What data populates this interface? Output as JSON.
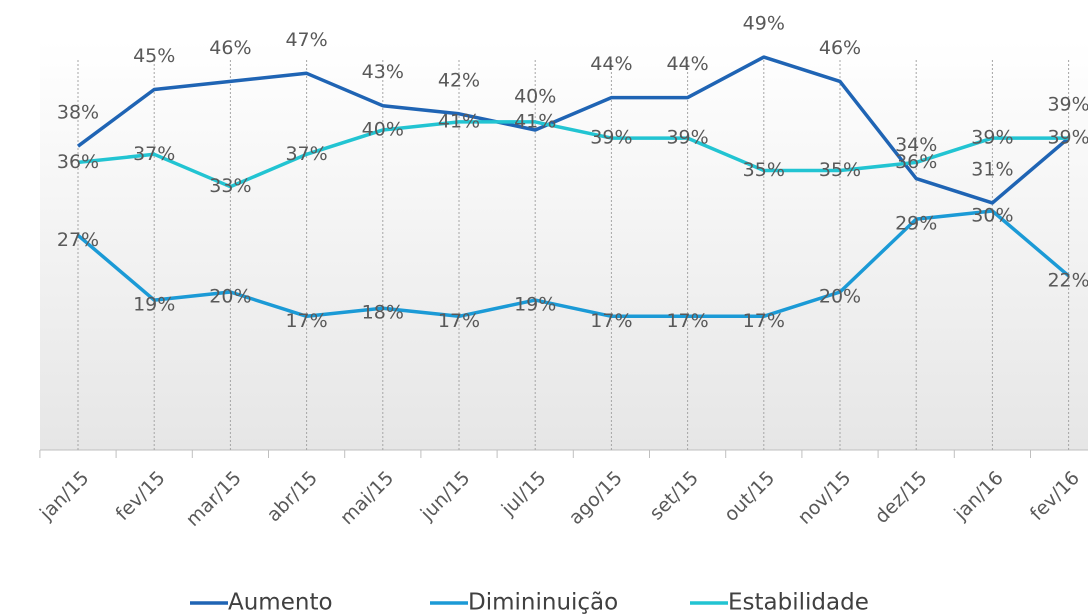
{
  "chart_data": {
    "type": "line",
    "categories": [
      "jan/15",
      "fev/15",
      "mar/15",
      "abr/15",
      "mai/15",
      "jun/15",
      "jul/15",
      "ago/15",
      "set/15",
      "out/15",
      "nov/15",
      "dez/15",
      "jan/16",
      "fev/16"
    ],
    "series": [
      {
        "name": "Aumento",
        "color": "#1f64b4",
        "values": [
          38,
          45,
          46,
          47,
          43,
          42,
          40,
          44,
          44,
          49,
          46,
          34,
          31,
          39
        ],
        "value_labels": [
          "38%",
          "45%",
          "46%",
          "47%",
          "43%",
          "42%",
          "40%",
          "44%",
          "44%",
          "49%",
          "46%",
          "34%",
          "31%",
          "39%"
        ]
      },
      {
        "name": "Dimininuição",
        "color": "#1b9ad6",
        "values": [
          27,
          19,
          20,
          17,
          18,
          17,
          19,
          17,
          17,
          17,
          20,
          29,
          30,
          22
        ],
        "value_labels": [
          "27%",
          "19%",
          "20%",
          "17%",
          "18%",
          "17%",
          "19%",
          "17%",
          "17%",
          "17%",
          "20%",
          "29%",
          "30%",
          "22%"
        ]
      },
      {
        "name": "Estabilidade",
        "color": "#22c4d2",
        "values": [
          36,
          37,
          33,
          37,
          40,
          41,
          41,
          39,
          39,
          35,
          35,
          36,
          39,
          39
        ],
        "value_labels": [
          "36%",
          "37%",
          "33%",
          "37%",
          "40%",
          "41%",
          "41%",
          "39%",
          "39%",
          "35%",
          "35%",
          "36%",
          "39%",
          "39%"
        ]
      }
    ],
    "grid": true
  }
}
